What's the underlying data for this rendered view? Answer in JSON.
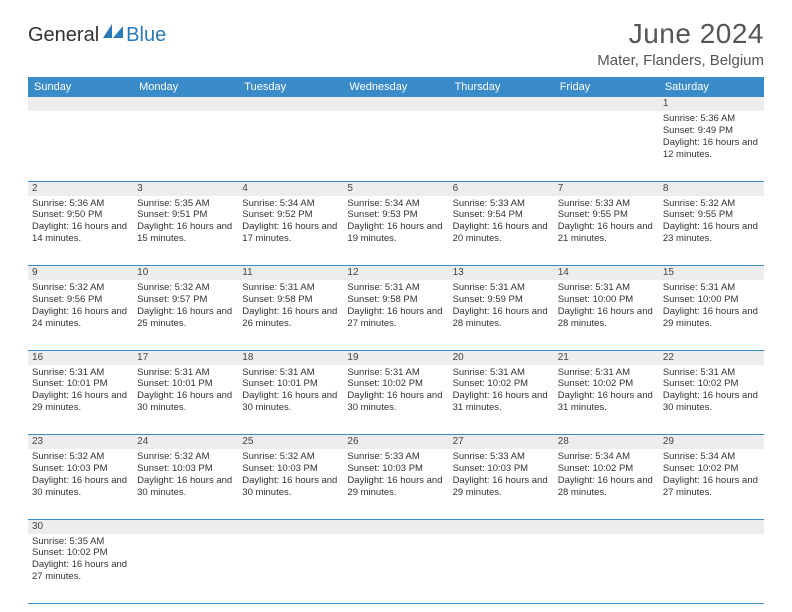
{
  "brand": {
    "text_dark": "General",
    "text_blue": "Blue"
  },
  "title": "June 2024",
  "location": "Mater, Flanders, Belgium",
  "colors": {
    "header_bg": "#3a8bc9",
    "header_text": "#ffffff",
    "daynum_bg": "#ededed",
    "row_border": "#3a8bc9",
    "body_text": "#333333",
    "title_text": "#555555",
    "brand_blue": "#2a7ab9",
    "brand_dark": "#333333",
    "page_bg": "#ffffff"
  },
  "day_names": [
    "Sunday",
    "Monday",
    "Tuesday",
    "Wednesday",
    "Thursday",
    "Friday",
    "Saturday"
  ],
  "weeks": [
    [
      null,
      null,
      null,
      null,
      null,
      null,
      {
        "n": "1",
        "sr": "5:36 AM",
        "ss": "9:49 PM",
        "dl": "16 hours and 12 minutes."
      }
    ],
    [
      {
        "n": "2",
        "sr": "5:36 AM",
        "ss": "9:50 PM",
        "dl": "16 hours and 14 minutes."
      },
      {
        "n": "3",
        "sr": "5:35 AM",
        "ss": "9:51 PM",
        "dl": "16 hours and 15 minutes."
      },
      {
        "n": "4",
        "sr": "5:34 AM",
        "ss": "9:52 PM",
        "dl": "16 hours and 17 minutes."
      },
      {
        "n": "5",
        "sr": "5:34 AM",
        "ss": "9:53 PM",
        "dl": "16 hours and 19 minutes."
      },
      {
        "n": "6",
        "sr": "5:33 AM",
        "ss": "9:54 PM",
        "dl": "16 hours and 20 minutes."
      },
      {
        "n": "7",
        "sr": "5:33 AM",
        "ss": "9:55 PM",
        "dl": "16 hours and 21 minutes."
      },
      {
        "n": "8",
        "sr": "5:32 AM",
        "ss": "9:55 PM",
        "dl": "16 hours and 23 minutes."
      }
    ],
    [
      {
        "n": "9",
        "sr": "5:32 AM",
        "ss": "9:56 PM",
        "dl": "16 hours and 24 minutes."
      },
      {
        "n": "10",
        "sr": "5:32 AM",
        "ss": "9:57 PM",
        "dl": "16 hours and 25 minutes."
      },
      {
        "n": "11",
        "sr": "5:31 AM",
        "ss": "9:58 PM",
        "dl": "16 hours and 26 minutes."
      },
      {
        "n": "12",
        "sr": "5:31 AM",
        "ss": "9:58 PM",
        "dl": "16 hours and 27 minutes."
      },
      {
        "n": "13",
        "sr": "5:31 AM",
        "ss": "9:59 PM",
        "dl": "16 hours and 28 minutes."
      },
      {
        "n": "14",
        "sr": "5:31 AM",
        "ss": "10:00 PM",
        "dl": "16 hours and 28 minutes."
      },
      {
        "n": "15",
        "sr": "5:31 AM",
        "ss": "10:00 PM",
        "dl": "16 hours and 29 minutes."
      }
    ],
    [
      {
        "n": "16",
        "sr": "5:31 AM",
        "ss": "10:01 PM",
        "dl": "16 hours and 29 minutes."
      },
      {
        "n": "17",
        "sr": "5:31 AM",
        "ss": "10:01 PM",
        "dl": "16 hours and 30 minutes."
      },
      {
        "n": "18",
        "sr": "5:31 AM",
        "ss": "10:01 PM",
        "dl": "16 hours and 30 minutes."
      },
      {
        "n": "19",
        "sr": "5:31 AM",
        "ss": "10:02 PM",
        "dl": "16 hours and 30 minutes."
      },
      {
        "n": "20",
        "sr": "5:31 AM",
        "ss": "10:02 PM",
        "dl": "16 hours and 31 minutes."
      },
      {
        "n": "21",
        "sr": "5:31 AM",
        "ss": "10:02 PM",
        "dl": "16 hours and 31 minutes."
      },
      {
        "n": "22",
        "sr": "5:31 AM",
        "ss": "10:02 PM",
        "dl": "16 hours and 30 minutes."
      }
    ],
    [
      {
        "n": "23",
        "sr": "5:32 AM",
        "ss": "10:03 PM",
        "dl": "16 hours and 30 minutes."
      },
      {
        "n": "24",
        "sr": "5:32 AM",
        "ss": "10:03 PM",
        "dl": "16 hours and 30 minutes."
      },
      {
        "n": "25",
        "sr": "5:32 AM",
        "ss": "10:03 PM",
        "dl": "16 hours and 30 minutes."
      },
      {
        "n": "26",
        "sr": "5:33 AM",
        "ss": "10:03 PM",
        "dl": "16 hours and 29 minutes."
      },
      {
        "n": "27",
        "sr": "5:33 AM",
        "ss": "10:03 PM",
        "dl": "16 hours and 29 minutes."
      },
      {
        "n": "28",
        "sr": "5:34 AM",
        "ss": "10:02 PM",
        "dl": "16 hours and 28 minutes."
      },
      {
        "n": "29",
        "sr": "5:34 AM",
        "ss": "10:02 PM",
        "dl": "16 hours and 27 minutes."
      }
    ],
    [
      {
        "n": "30",
        "sr": "5:35 AM",
        "ss": "10:02 PM",
        "dl": "16 hours and 27 minutes."
      },
      null,
      null,
      null,
      null,
      null,
      null
    ]
  ],
  "labels": {
    "sunrise": "Sunrise:",
    "sunset": "Sunset:",
    "daylight": "Daylight:"
  }
}
